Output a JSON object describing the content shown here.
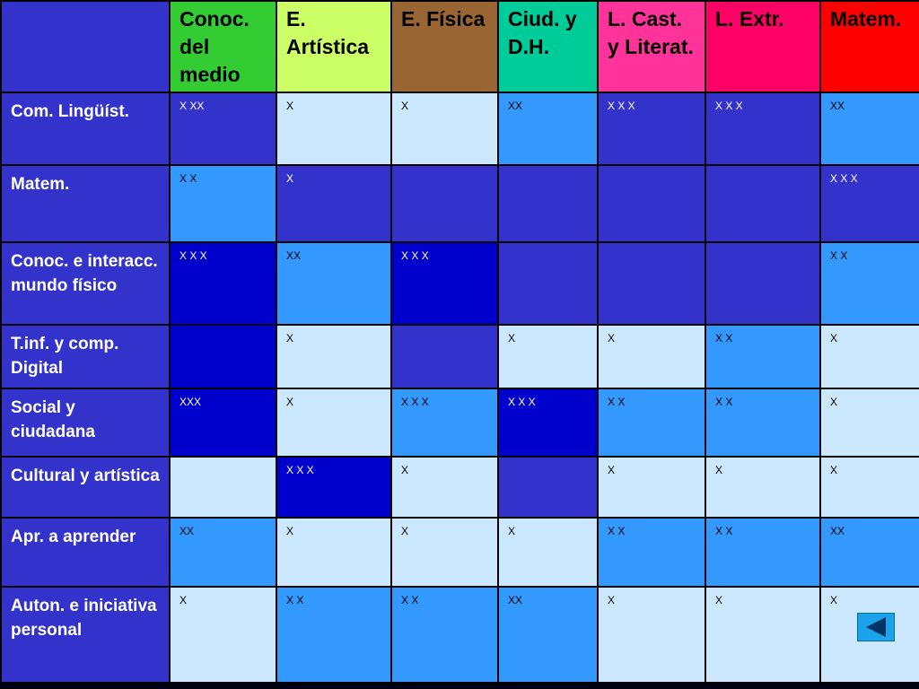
{
  "table": {
    "columns": [
      {
        "label": "Conoc. del medio",
        "color": "#33cc33"
      },
      {
        "label": "E. Artística",
        "color": "#ccff66"
      },
      {
        "label": "E. Física",
        "color": "#996633"
      },
      {
        "label": "Ciud. y D.H.",
        "color": "#00cc99"
      },
      {
        "label": "L. Cast. y Literat.",
        "color": "#ff3399"
      },
      {
        "label": "L. Extr.",
        "color": "#ff0066"
      },
      {
        "label": "Matem.",
        "color": "#ff0000"
      }
    ],
    "rows": [
      {
        "label": "Com. Lingüíst.",
        "cells": [
          {
            "text": "X XX",
            "shade": "dark"
          },
          {
            "text": "X",
            "shade": "light"
          },
          {
            "text": "X",
            "shade": "light"
          },
          {
            "text": "XX",
            "shade": "mid"
          },
          {
            "text": "X X X",
            "shade": "dark"
          },
          {
            "text": "X X X",
            "shade": "dark"
          },
          {
            "text": "XX",
            "shade": "mid"
          }
        ]
      },
      {
        "label": "Matem.",
        "cells": [
          {
            "text": "X X",
            "shade": "mid"
          },
          {
            "text": "X",
            "shade": "dark"
          },
          {
            "text": "",
            "shade": "dark"
          },
          {
            "text": "",
            "shade": "dark"
          },
          {
            "text": "",
            "shade": "dark"
          },
          {
            "text": "",
            "shade": "dark"
          },
          {
            "text": "X X X",
            "shade": "dark"
          }
        ]
      },
      {
        "label": "Conoc. e interacc. mundo físico",
        "cells": [
          {
            "text": "X X X",
            "shade": "deep"
          },
          {
            "text": "XX",
            "shade": "mid"
          },
          {
            "text": "X X X",
            "shade": "deep"
          },
          {
            "text": "",
            "shade": "dark"
          },
          {
            "text": "",
            "shade": "dark"
          },
          {
            "text": "",
            "shade": "dark"
          },
          {
            "text": "X X",
            "shade": "mid"
          }
        ]
      },
      {
        "label": "T.inf. y comp. Digital",
        "cells": [
          {
            "text": "",
            "shade": "deep"
          },
          {
            "text": "X",
            "shade": "light"
          },
          {
            "text": "",
            "shade": "dark"
          },
          {
            "text": "X",
            "shade": "light"
          },
          {
            "text": "X",
            "shade": "light"
          },
          {
            "text": "X X",
            "shade": "mid"
          },
          {
            "text": "X",
            "shade": "light"
          }
        ]
      },
      {
        "label": "Social y ciudadana",
        "cells": [
          {
            "text": "XXX",
            "shade": "deep"
          },
          {
            "text": "X",
            "shade": "light"
          },
          {
            "text": "X X X",
            "shade": "mid"
          },
          {
            "text": "X X X",
            "shade": "deep"
          },
          {
            "text": "X X",
            "shade": "mid"
          },
          {
            "text": "X X",
            "shade": "mid"
          },
          {
            "text": "X",
            "shade": "light"
          }
        ]
      },
      {
        "label": "Cultural y artística",
        "cells": [
          {
            "text": "",
            "shade": "light"
          },
          {
            "text": "X X X",
            "shade": "deep"
          },
          {
            "text": "X",
            "shade": "light"
          },
          {
            "text": "",
            "shade": "dark"
          },
          {
            "text": "X",
            "shade": "light"
          },
          {
            "text": "X",
            "shade": "light"
          },
          {
            "text": "X",
            "shade": "light"
          }
        ]
      },
      {
        "label": "Apr. a aprender",
        "cells": [
          {
            "text": "XX",
            "shade": "mid"
          },
          {
            "text": "X",
            "shade": "light"
          },
          {
            "text": "X",
            "shade": "light"
          },
          {
            "text": "X",
            "shade": "light"
          },
          {
            "text": "X X",
            "shade": "mid"
          },
          {
            "text": "X X",
            "shade": "mid"
          },
          {
            "text": "XX",
            "shade": "mid"
          }
        ]
      },
      {
        "label": "Auton. e iniciativa personal",
        "cells": [
          {
            "text": "X",
            "shade": "light"
          },
          {
            "text": "X X",
            "shade": "mid"
          },
          {
            "text": "X X",
            "shade": "mid"
          },
          {
            "text": "XX",
            "shade": "mid"
          },
          {
            "text": "X",
            "shade": "light"
          },
          {
            "text": "X",
            "shade": "light"
          },
          {
            "text": "X",
            "shade": "light"
          }
        ]
      }
    ]
  },
  "nav": {
    "back_icon": "triangle-left-icon"
  },
  "colors": {
    "dark": "#3333cc",
    "deep": "#0000cc",
    "mid": "#3399ff",
    "light": "#cce8ff",
    "back_button": "#1aa3e8"
  }
}
